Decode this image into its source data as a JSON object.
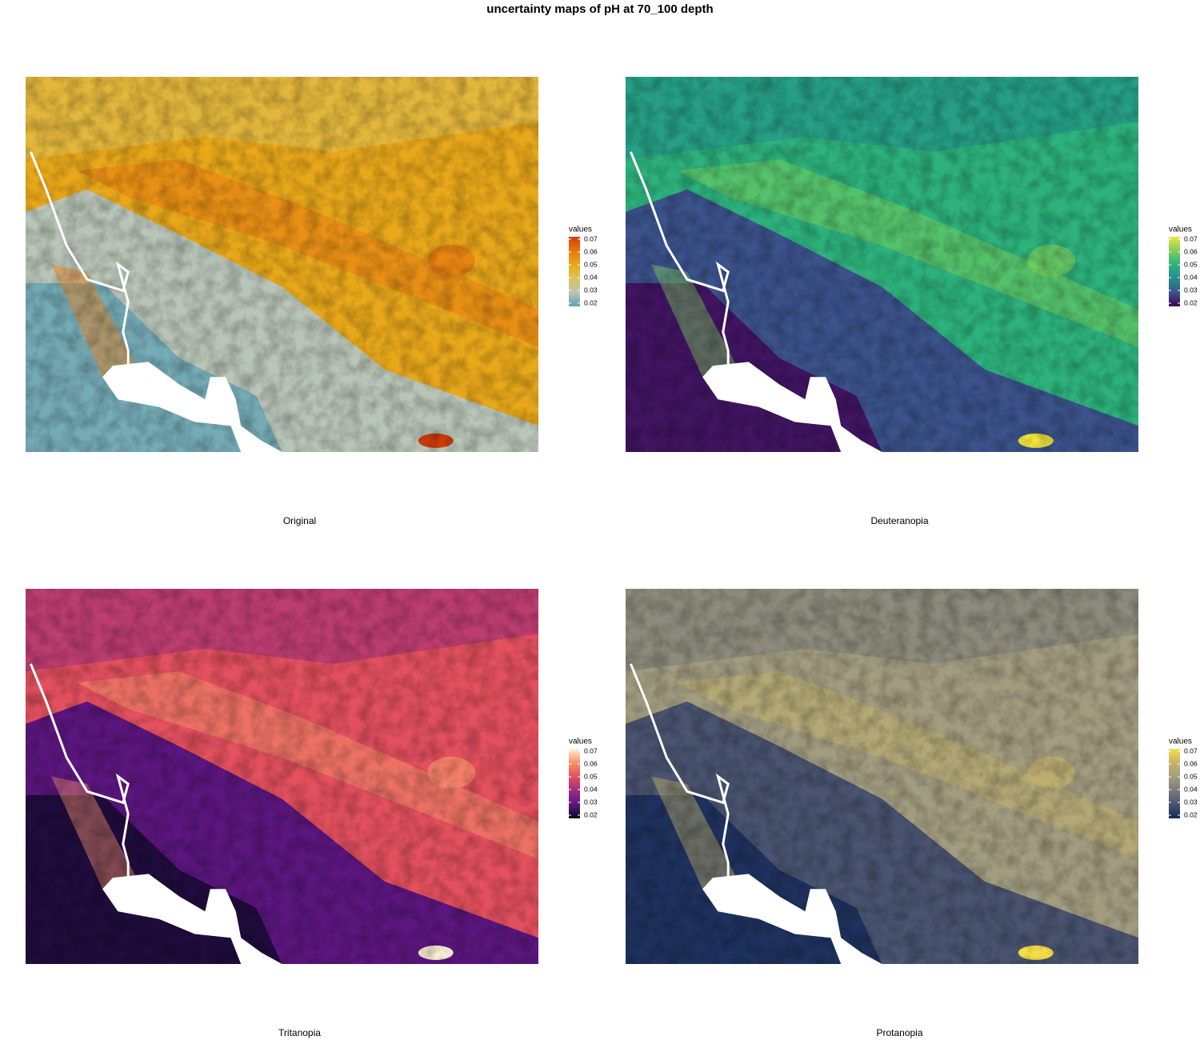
{
  "title": "uncertainty maps of pH at 70_100 depth",
  "panels": [
    {
      "caption": "Original",
      "legend": {
        "title": "values",
        "ticks": [
          0.07,
          0.06,
          0.05,
          0.04,
          0.03,
          0.02
        ],
        "colors": [
          "#d43d0a",
          "#e8770f",
          "#e8a81a",
          "#dfc25a",
          "#b9c5b8",
          "#5fa2b5"
        ]
      }
    },
    {
      "caption": "Deuteranopia",
      "legend": {
        "title": "values",
        "ticks": [
          0.07,
          0.06,
          0.05,
          0.04,
          0.03,
          0.02
        ],
        "colors": [
          "#f0e33a",
          "#7ccf5a",
          "#2db27d",
          "#21908c",
          "#3b528b",
          "#440154"
        ]
      }
    },
    {
      "caption": "Tritanopia",
      "legend": {
        "title": "values",
        "ticks": [
          0.07,
          0.06,
          0.05,
          0.04,
          0.03,
          0.02
        ],
        "colors": [
          "#fcf1d8",
          "#f6926a",
          "#e3505e",
          "#9c2e7f",
          "#5c167f",
          "#0c0927"
        ]
      }
    },
    {
      "caption": "Protanopia",
      "legend": {
        "title": "values",
        "ticks": [
          0.07,
          0.06,
          0.05,
          0.04,
          0.03,
          0.02
        ],
        "colors": [
          "#f5dd45",
          "#c4b36b",
          "#a39d80",
          "#7a7b7a",
          "#4a5470",
          "#12275a"
        ]
      }
    }
  ]
}
